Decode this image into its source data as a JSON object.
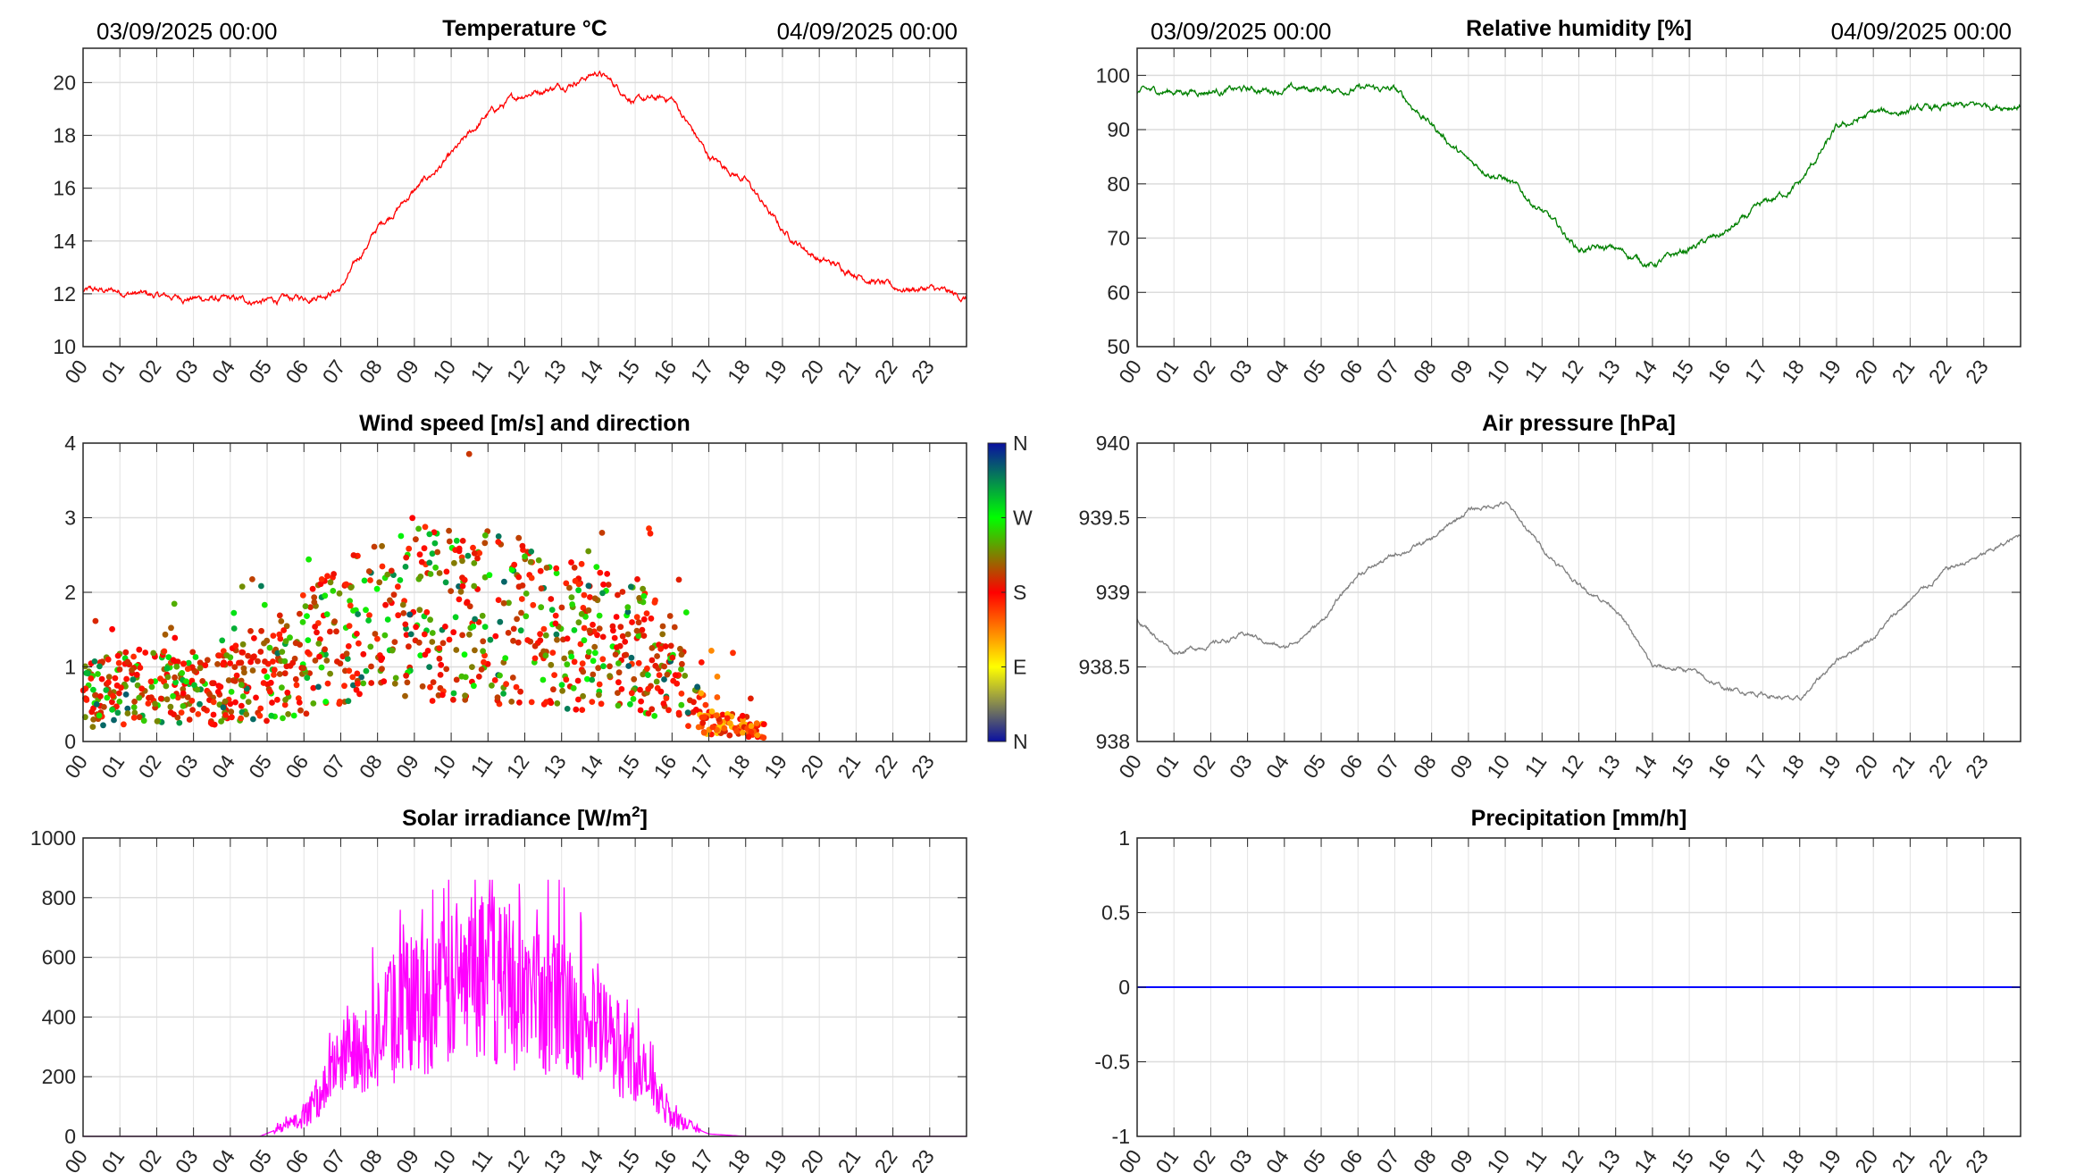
{
  "date_start": "03/09/2025 00:00",
  "date_end": "04/09/2025 00:00",
  "hour_labels": [
    "00",
    "01",
    "02",
    "03",
    "04",
    "05",
    "06",
    "07",
    "08",
    "09",
    "10",
    "11",
    "12",
    "13",
    "14",
    "15",
    "16",
    "17",
    "18",
    "19",
    "20",
    "21",
    "22",
    "23"
  ],
  "chart_data": [
    {
      "id": "temperature",
      "type": "line",
      "title": "Temperature °C",
      "xlabel": "",
      "ylabel": "",
      "xlim_hours": [
        0,
        24
      ],
      "ylim": [
        10,
        21.3
      ],
      "yticks": [
        10,
        12,
        14,
        16,
        18,
        20
      ],
      "ytick_labels": [
        "10",
        "12",
        "14",
        "16",
        "18",
        "20"
      ],
      "color": "#ff0000",
      "grid": true,
      "x_hours": [
        0,
        1,
        2,
        3,
        4,
        5,
        6,
        7,
        8,
        9,
        10,
        11,
        12,
        13,
        14,
        15,
        16,
        17,
        18,
        19,
        20,
        21,
        22,
        23,
        24
      ],
      "values": [
        12.1,
        12.1,
        11.9,
        11.85,
        11.75,
        11.72,
        11.85,
        12.2,
        14.5,
        15.9,
        17.2,
        18.8,
        19.6,
        19.9,
        20.4,
        19.3,
        19.4,
        17.2,
        16.3,
        14.4,
        13.3,
        12.8,
        12.2,
        12.2,
        11.8
      ],
      "noise": 0.25
    },
    {
      "id": "humidity",
      "type": "line",
      "title": "Relative humidity [%]",
      "xlim_hours": [
        0,
        24
      ],
      "ylim": [
        50,
        105
      ],
      "yticks": [
        50,
        60,
        70,
        80,
        90,
        100
      ],
      "ytick_labels": [
        "50",
        "60",
        "70",
        "80",
        "90",
        "100"
      ],
      "color": "#008000",
      "grid": true,
      "x_hours": [
        0,
        1,
        2,
        3,
        4,
        5,
        6,
        7,
        8,
        9,
        10,
        11,
        12,
        13,
        14,
        15,
        16,
        17,
        18,
        19,
        20,
        21,
        22,
        23,
        24
      ],
      "values": [
        97,
        97.1,
        97.2,
        97.3,
        97.4,
        97.5,
        97.5,
        97.3,
        91,
        84,
        81,
        75,
        68,
        68,
        65,
        68,
        71,
        76,
        80,
        90,
        93,
        93.5,
        94,
        94.5,
        94.5
      ],
      "noise": 1.2
    },
    {
      "id": "wind",
      "type": "scatter",
      "title": "Wind speed [m/s] and direction",
      "xlim_hours": [
        0,
        24
      ],
      "ylim": [
        0,
        4
      ],
      "yticks": [
        0,
        1,
        2,
        3,
        4
      ],
      "ytick_labels": [
        "0",
        "1",
        "2",
        "3",
        "4"
      ],
      "grid": true,
      "x_hours": [
        0,
        1,
        2,
        3,
        4,
        5,
        6,
        7,
        8,
        9,
        10,
        11,
        12,
        13,
        14,
        15,
        16,
        17,
        18,
        18.5
      ],
      "mean_speed": [
        0.6,
        0.7,
        0.8,
        0.6,
        0.8,
        0.9,
        1.2,
        1.4,
        1.6,
        1.8,
        1.6,
        1.7,
        1.6,
        1.4,
        1.4,
        1.3,
        1.0,
        0.25,
        0.2,
        0.15
      ],
      "colorbar": {
        "labels": [
          "N",
          "E",
          "S",
          "W",
          "N"
        ],
        "colors": [
          "#0a10a0",
          "#ffff00",
          "#ff0000",
          "#00ff00",
          "#0a10a0"
        ]
      }
    },
    {
      "id": "pressure",
      "type": "line",
      "title": "Air pressure [hPa]",
      "xlim_hours": [
        0,
        24
      ],
      "ylim": [
        938,
        940
      ],
      "yticks": [
        938,
        938.5,
        939,
        939.5,
        940
      ],
      "ytick_labels": [
        "938",
        "938.5",
        "939",
        "939.5",
        "940"
      ],
      "color": "#808080",
      "grid": true,
      "x_hours": [
        0,
        1,
        2,
        3,
        4,
        5,
        6,
        7,
        8,
        9,
        10,
        11,
        12,
        13,
        14,
        15,
        16,
        17,
        18,
        19,
        20,
        21,
        22,
        23,
        24
      ],
      "values": [
        938.82,
        938.6,
        938.65,
        938.72,
        938.62,
        938.8,
        939.12,
        939.25,
        939.35,
        939.55,
        939.6,
        939.3,
        939.05,
        938.9,
        938.5,
        938.48,
        938.35,
        938.32,
        938.27,
        938.55,
        938.7,
        938.95,
        939.15,
        939.25,
        939.38
      ],
      "noise": 0.03
    },
    {
      "id": "solar",
      "type": "line",
      "title": "Solar irradiance [W/m",
      "title_sup": "2",
      "title_end": "]",
      "xlim_hours": [
        0,
        24
      ],
      "ylim": [
        0,
        1000
      ],
      "yticks": [
        0,
        200,
        400,
        600,
        800,
        1000
      ],
      "ytick_labels": [
        "0",
        "200",
        "400",
        "600",
        "800",
        "1000"
      ],
      "color": "#ff00ff",
      "grid": true,
      "x_hours": [
        0,
        1,
        2,
        3,
        4,
        4.8,
        5,
        6,
        7,
        8,
        9,
        10,
        11,
        12,
        13,
        14,
        15,
        16,
        17,
        18,
        19,
        20,
        21,
        22,
        23,
        24
      ],
      "values": [
        0,
        0,
        0,
        0,
        0,
        0,
        10,
        60,
        250,
        350,
        450,
        480,
        550,
        450,
        450,
        350,
        250,
        60,
        8,
        0,
        0,
        0,
        0,
        0,
        0,
        0
      ],
      "noise": 1.0,
      "spiky": true
    },
    {
      "id": "precipitation",
      "type": "line",
      "title": "Precipitation [mm/h]",
      "xlim_hours": [
        0,
        24
      ],
      "ylim": [
        -1,
        1
      ],
      "yticks": [
        -1,
        -0.5,
        0,
        0.5,
        1
      ],
      "ytick_labels": [
        "-1",
        "-0.5",
        "0",
        "0.5",
        "1"
      ],
      "color": "#0000ff",
      "grid": true,
      "x_hours": [
        0,
        24
      ],
      "values": [
        0,
        0
      ],
      "noise": 0
    }
  ]
}
